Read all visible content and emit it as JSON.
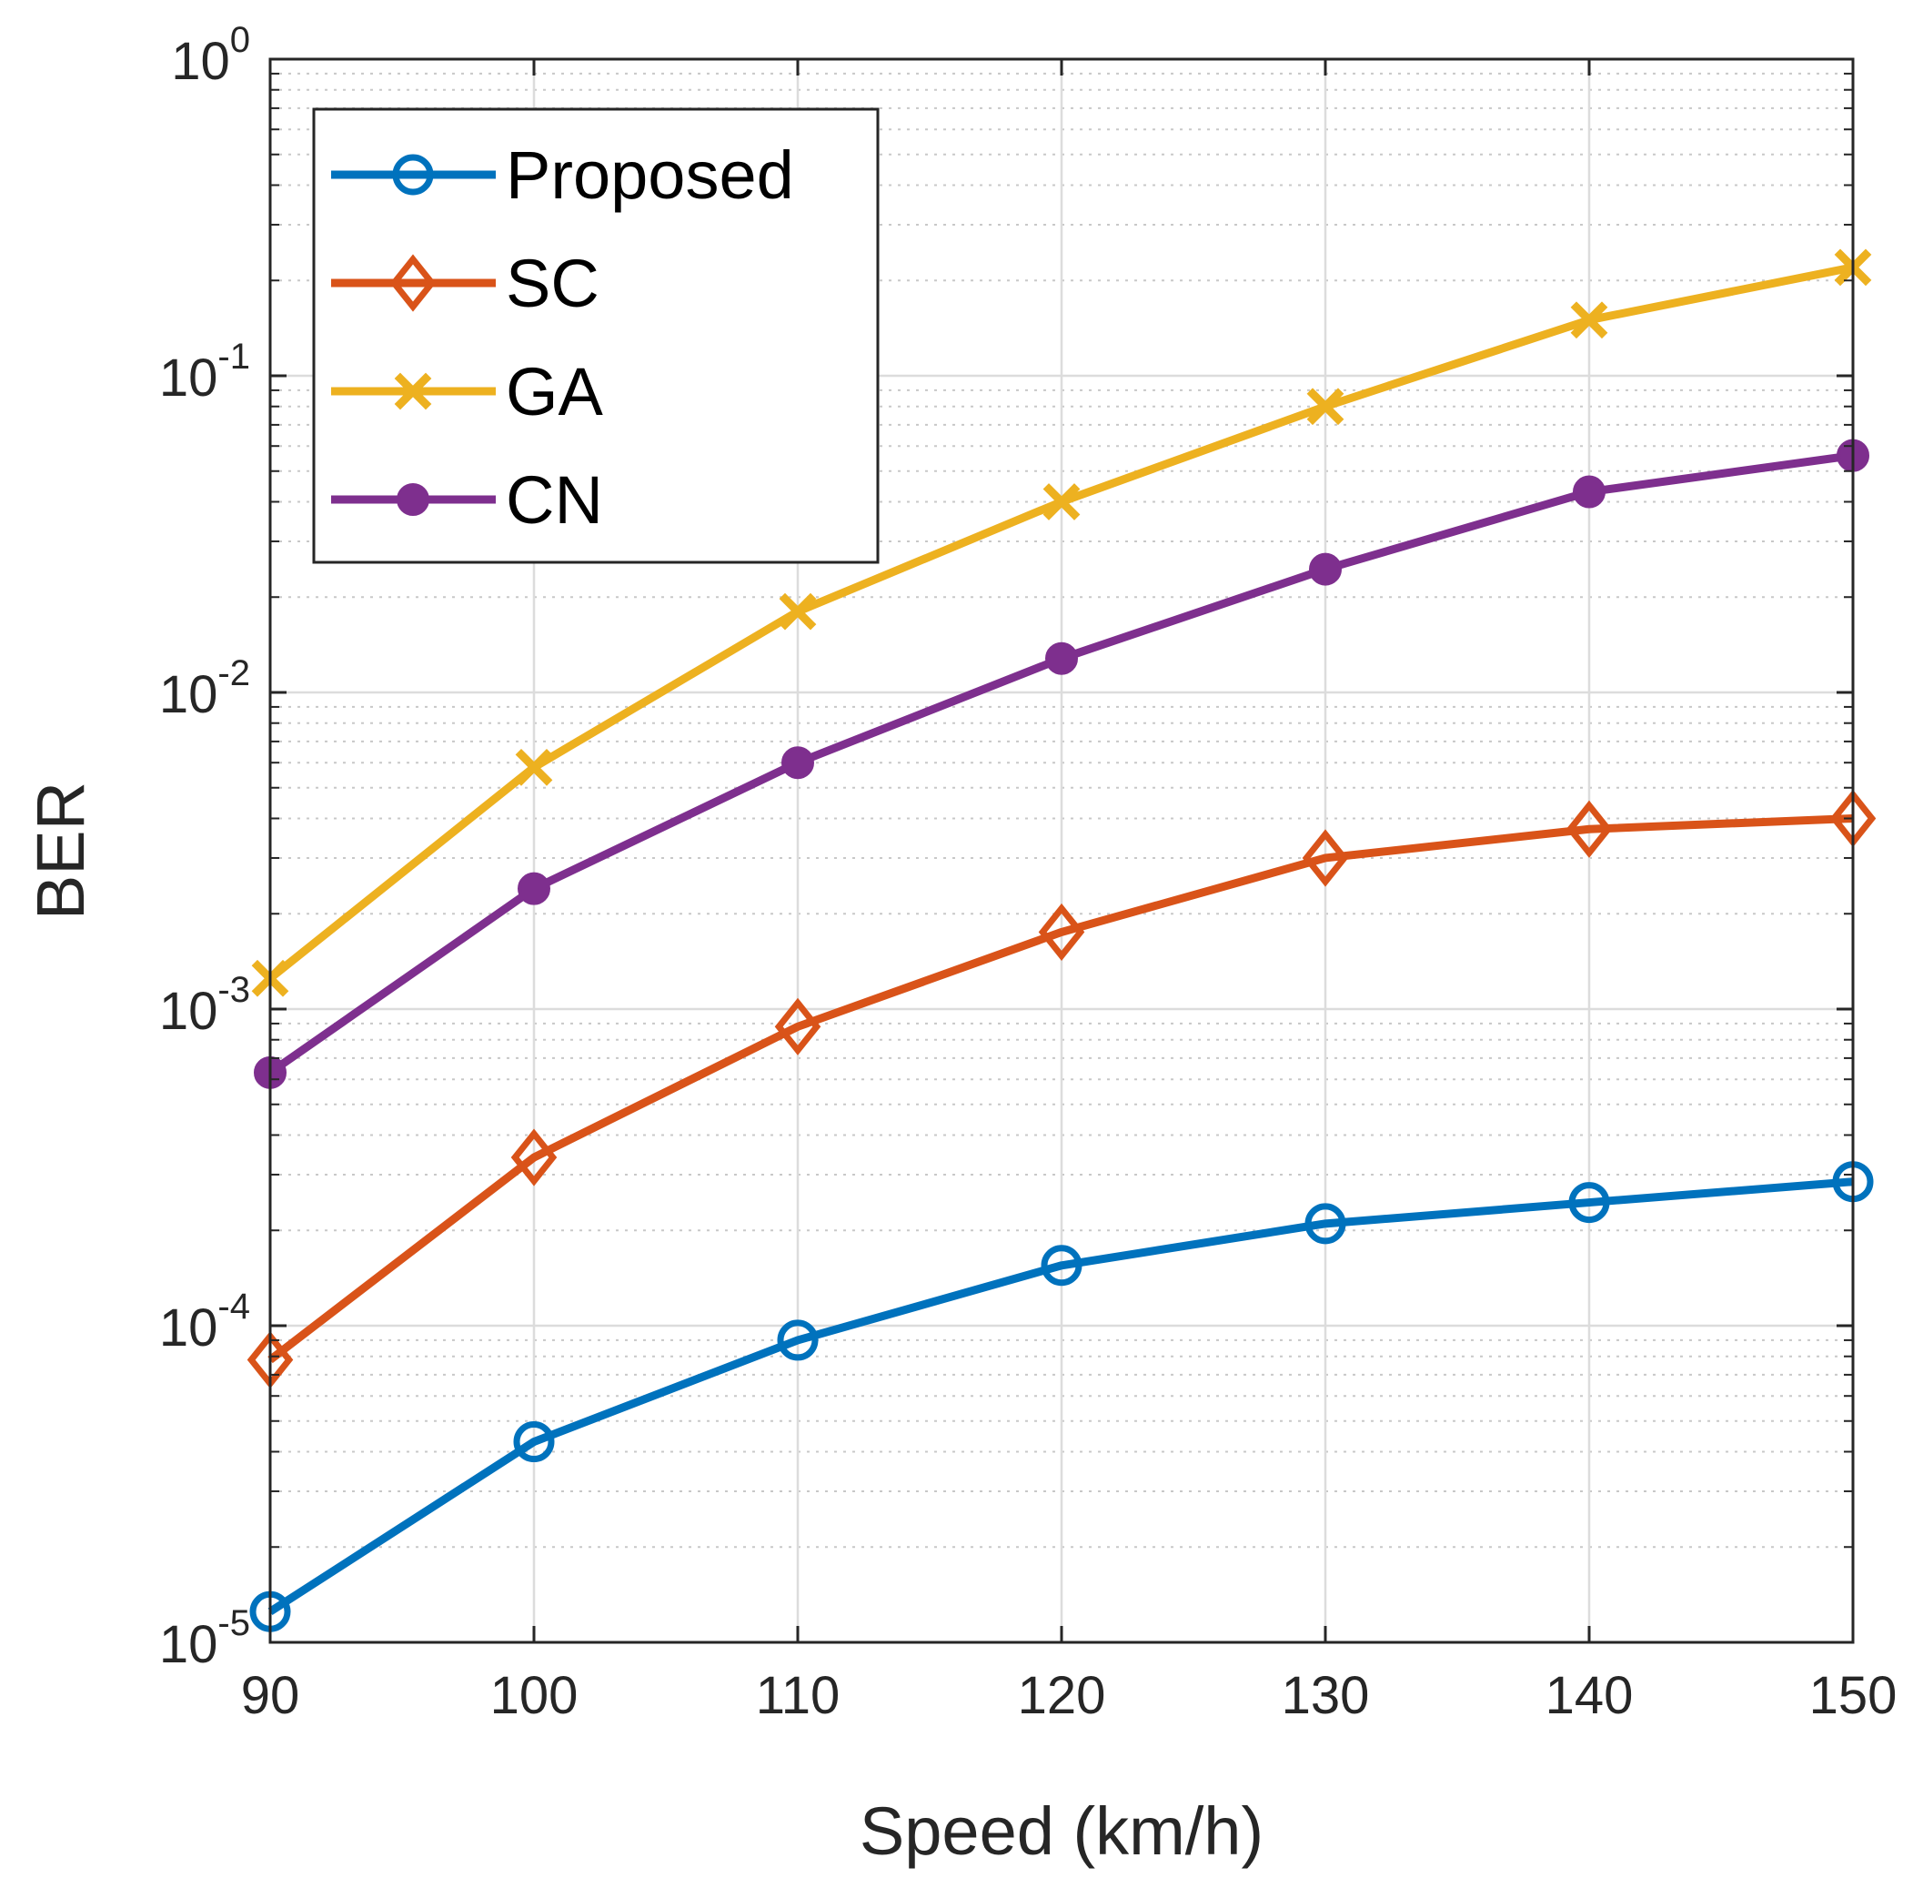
{
  "chart_data": {
    "type": "line",
    "xlabel": "Speed (km/h)",
    "ylabel": "BER",
    "x": [
      90,
      100,
      110,
      120,
      130,
      140,
      150
    ],
    "xlim": [
      90,
      150
    ],
    "ylim": [
      1e-05,
      1
    ],
    "yscale": "log",
    "x_ticks": [
      "90",
      "100",
      "110",
      "120",
      "130",
      "140",
      "150"
    ],
    "y_ticks": [
      {
        "value": 1,
        "base": "10",
        "exp": "0"
      },
      {
        "value": 0.1,
        "base": "10",
        "exp": "-1"
      },
      {
        "value": 0.01,
        "base": "10",
        "exp": "-2"
      },
      {
        "value": 0.001,
        "base": "10",
        "exp": "-3"
      },
      {
        "value": 0.0001,
        "base": "10",
        "exp": "-4"
      },
      {
        "value": 1e-05,
        "base": "10",
        "exp": "-5"
      }
    ],
    "grid": true,
    "minor_grid": true,
    "legend_position": "top-left",
    "series": [
      {
        "name": "Proposed",
        "color": "#0072BD",
        "marker": "circle-open",
        "values": [
          1.25e-05,
          4.3e-05,
          9e-05,
          0.000155,
          0.00021,
          0.000245,
          0.000285
        ]
      },
      {
        "name": "SC",
        "color": "#D95319",
        "marker": "diamond-open",
        "values": [
          7.8e-05,
          0.00034,
          0.00088,
          0.00175,
          0.003,
          0.0037,
          0.004
        ]
      },
      {
        "name": "GA",
        "color": "#EDB120",
        "marker": "x",
        "values": [
          0.00125,
          0.0058,
          0.018,
          0.04,
          0.08,
          0.15,
          0.22
        ]
      },
      {
        "name": "CN",
        "color": "#7E2F8E",
        "marker": "circle-filled",
        "values": [
          0.00063,
          0.0024,
          0.006,
          0.0128,
          0.0245,
          0.043,
          0.056
        ]
      }
    ]
  }
}
